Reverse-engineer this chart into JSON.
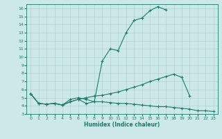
{
  "xlabel": "Humidex (Indice chaleur)",
  "x_values": [
    0,
    1,
    2,
    3,
    4,
    5,
    6,
    7,
    8,
    9,
    10,
    11,
    12,
    13,
    14,
    15,
    16,
    17,
    18,
    19,
    20,
    21,
    22,
    23
  ],
  "line1_y": [
    5.5,
    4.3,
    4.2,
    4.3,
    4.1,
    4.8,
    5.0,
    4.8,
    4.5,
    9.5,
    11.0,
    10.8,
    13.0,
    14.5,
    14.8,
    15.7,
    16.2,
    15.8,
    null,
    null,
    null,
    null,
    null,
    null
  ],
  "line2_y": [
    5.5,
    4.3,
    4.2,
    4.3,
    4.1,
    4.5,
    4.8,
    5.0,
    5.2,
    5.3,
    5.5,
    5.7,
    6.0,
    6.3,
    6.6,
    7.0,
    7.3,
    7.6,
    7.9,
    7.5,
    5.2,
    null,
    null,
    null
  ],
  "line3_y": [
    5.5,
    4.3,
    4.2,
    4.3,
    4.1,
    4.5,
    4.8,
    4.3,
    4.5,
    4.5,
    4.4,
    4.3,
    4.3,
    4.2,
    4.1,
    4.0,
    3.9,
    3.9,
    3.8,
    3.7,
    3.6,
    3.4,
    3.4,
    3.3
  ],
  "line_color": "#1a7a6a",
  "bg_color": "#cce8e8",
  "grid_color": "#aacccc",
  "ylim": [
    3,
    16.5
  ],
  "xlim": [
    -0.5,
    23.5
  ],
  "yticks": [
    3,
    4,
    5,
    6,
    7,
    8,
    9,
    10,
    11,
    12,
    13,
    14,
    15,
    16
  ],
  "xticks": [
    0,
    1,
    2,
    3,
    4,
    5,
    6,
    7,
    8,
    9,
    10,
    11,
    12,
    13,
    14,
    15,
    16,
    17,
    18,
    19,
    20,
    21,
    22,
    23
  ]
}
